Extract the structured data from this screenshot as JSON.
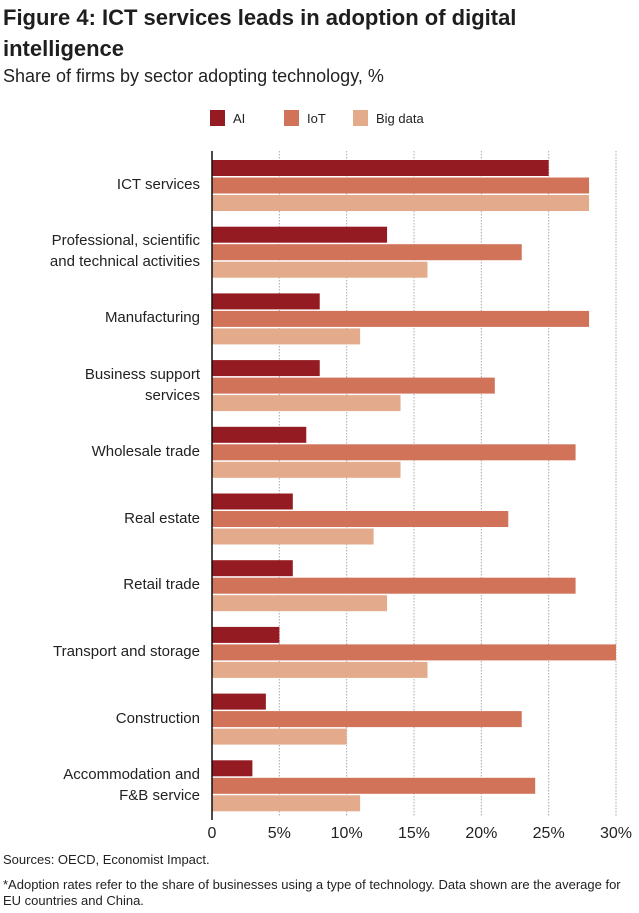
{
  "title": "Figure 4: ICT services leads in adoption of digital intelligence",
  "subtitle": "Share of firms by sector adopting technology, %",
  "sources": "Sources: OECD, Economist Impact.",
  "footnote": "*Adoption rates refer to the share of businesses using a type of technology. Data shown are the average for EU countries and China.",
  "chart_data": {
    "type": "bar",
    "orientation": "horizontal",
    "title": "Figure 4: ICT services leads in adoption of digital intelligence",
    "subtitle": "Share of firms by sector adopting technology, %",
    "xlabel": "",
    "ylabel": "",
    "xlim": [
      0,
      30
    ],
    "xticks": [
      0,
      5,
      10,
      15,
      20,
      25,
      30
    ],
    "xtick_labels": [
      "0",
      "5%",
      "10%",
      "15%",
      "20%",
      "25%",
      "30%"
    ],
    "grid": "vertical dotted",
    "legend_position": "top-center",
    "categories": [
      "ICT services",
      "Professional, scientific\nand technical activities",
      "Manufacturing",
      "Business support\nservices",
      "Wholesale trade",
      "Real estate",
      "Retail trade",
      "Transport and storage",
      "Construction",
      "Accommodation and\nF&B service"
    ],
    "series": [
      {
        "name": "AI",
        "color": "#951b23",
        "values": [
          25,
          13,
          8,
          8,
          7,
          6,
          6,
          5,
          4,
          3
        ]
      },
      {
        "name": "IoT",
        "color": "#d07358",
        "values": [
          28,
          23,
          28,
          21,
          27,
          22,
          27,
          30,
          23,
          24
        ]
      },
      {
        "name": "Big data",
        "color": "#e3aa8b",
        "values": [
          28,
          16,
          11,
          14,
          14,
          12,
          13,
          16,
          10,
          11
        ]
      }
    ]
  }
}
